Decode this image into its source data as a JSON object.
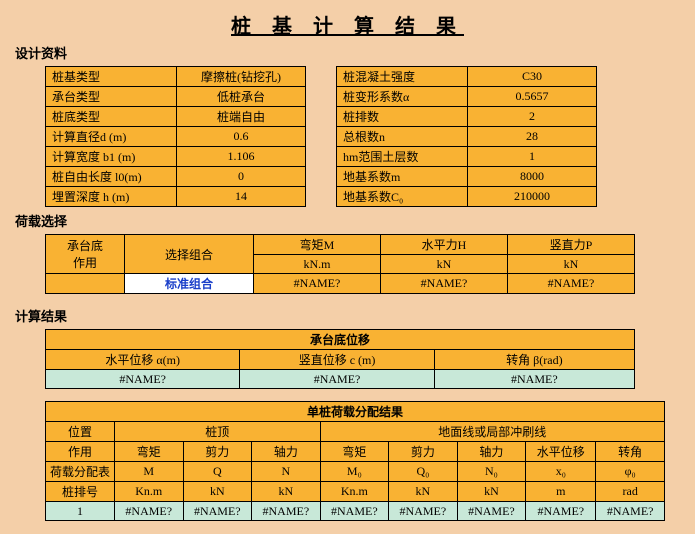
{
  "title": "桩 基 计 算 结 果",
  "sections": {
    "design": "设计资料",
    "load": "荷载选择",
    "result": "计算结果"
  },
  "left_table": [
    {
      "label": "桩基类型",
      "value": "摩擦桩(钻挖孔)"
    },
    {
      "label": "承台类型",
      "value": "低桩承台"
    },
    {
      "label": "桩底类型",
      "value": "桩端自由"
    },
    {
      "label": "计算直径d (m)",
      "value": "0.6"
    },
    {
      "label": "计算宽度 b1 (m)",
      "value": "1.106"
    },
    {
      "label": "桩自由长度 l0(m)",
      "value": "0"
    },
    {
      "label": "埋置深度 h (m)",
      "value": "14"
    }
  ],
  "right_table": [
    {
      "label": "桩混凝土强度",
      "value": "C30"
    },
    {
      "label": "桩变形系数α",
      "value": "0.5657"
    },
    {
      "label": "桩排数",
      "value": "2"
    },
    {
      "label": "总根数n",
      "value": "28"
    },
    {
      "label": "hm范围土层数",
      "value": "1"
    },
    {
      "label": "地基系数m",
      "value": "8000"
    },
    {
      "label": "地基系数C₀",
      "value": "210000"
    }
  ],
  "load_table": {
    "row1": {
      "c1": "",
      "c2": "弯矩M",
      "c3": "水平力H",
      "c4": "竖直力P"
    },
    "rowspan_left_top": "承台底",
    "rowspan_left_bot": "作用",
    "rowspan_mid": "选择组合",
    "row2": {
      "c2": "kN.m",
      "c3": "kN",
      "c4": "kN"
    },
    "row3": {
      "c1": "标准组合",
      "c2": "#NAME?",
      "c3": "#NAME?",
      "c4": "#NAME?"
    }
  },
  "disp_table": {
    "title": "承台底位移",
    "h1": "水平位移  α(m)",
    "h2": "竖直位移 c (m)",
    "h3": "转角  β(rad)",
    "v1": "#NAME?",
    "v2": "#NAME?",
    "v3": "#NAME?"
  },
  "dist_table": {
    "title": "单桩荷载分配结果",
    "h_pos": "位置",
    "h_top": "桩顶",
    "h_ground": "地面线或局部冲刷线",
    "h_act": "作用",
    "a1": "弯矩",
    "a2": "剪力",
    "a3": "轴力",
    "a4": "弯矩",
    "a5": "剪力",
    "a6": "轴力",
    "a7": "水平位移",
    "a8": "转角",
    "h_tbl": "荷载分配表",
    "t1": "M",
    "t2": "Q",
    "t3": "N",
    "t4": "M₀",
    "t5": "Q₀",
    "t6": "N₀",
    "t7": "x₀",
    "t8": "φ₀",
    "h_row": "桩排号",
    "u1": "Kn.m",
    "u2": "kN",
    "u3": "kN",
    "u4": "Kn.m",
    "u5": "kN",
    "u6": "kN",
    "u7": "m",
    "u8": "rad",
    "r_num": "1",
    "r1": "#NAME?",
    "r2": "#NAME?",
    "r3": "#NAME?",
    "r4": "#NAME?",
    "r5": "#NAME?",
    "r6": "#NAME?",
    "r7": "#NAME?",
    "r8": "#NAME?"
  }
}
